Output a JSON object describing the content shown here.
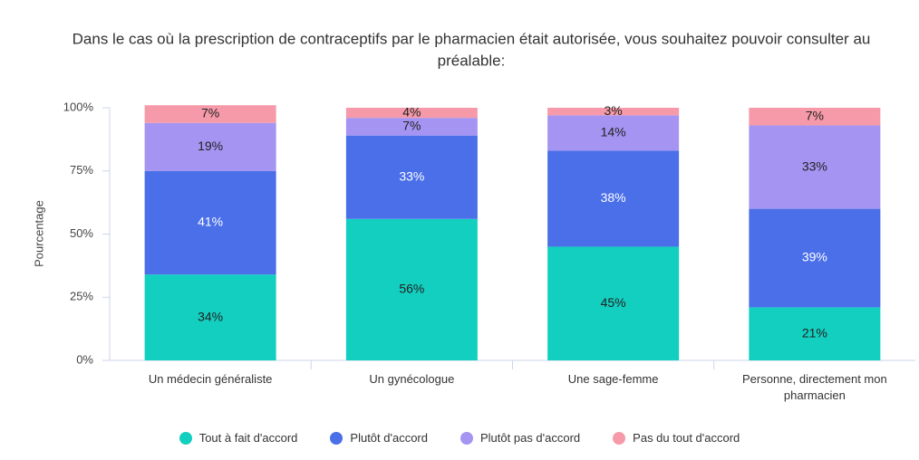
{
  "chart_data": {
    "type": "stacked_bar",
    "title": [
      "Dans le cas où la prescription de contraceptifs par le pharmacien était autorisée, vous souhaitez pouvoir consulter au",
      "préalable:"
    ],
    "y_label": "Pourcentage",
    "categories": [
      "Un médecin généraliste",
      "Un gynécologue",
      "Une sage-femme",
      "Personne, directement mon pharmacien"
    ],
    "series": [
      {
        "name": "Tout à fait d'accord",
        "color": "#13cfc0",
        "label_color": "#222",
        "values": [
          34,
          56,
          45,
          21
        ],
        "value_labels": [
          "34%",
          "56%",
          "45%",
          "21%"
        ]
      },
      {
        "name": "Plutôt d'accord",
        "color": "#4a6fe8",
        "label_color": "#fff",
        "values": [
          41,
          33,
          38,
          39
        ],
        "value_labels": [
          "41%",
          "33%",
          "38%",
          "39%"
        ]
      },
      {
        "name": "Plutôt pas d'accord",
        "color": "#a594f2",
        "label_color": "#222",
        "values": [
          19,
          7,
          14,
          33
        ],
        "value_labels": [
          "19%",
          "7%",
          "14%",
          "33%"
        ]
      },
      {
        "name": "Pas du tout d'accord",
        "color": "#f69aa9",
        "label_color": "#222",
        "values": [
          7,
          4,
          3,
          7
        ],
        "value_labels": [
          "7%",
          "4%",
          "3%",
          "7%"
        ]
      }
    ],
    "ylim": [
      0,
      100
    ],
    "yticks": [
      {
        "value": 0,
        "label": "0%"
      },
      {
        "value": 25,
        "label": "25%"
      },
      {
        "value": 50,
        "label": "50%"
      },
      {
        "value": 75,
        "label": "75%"
      },
      {
        "value": 100,
        "label": "100%"
      }
    ]
  }
}
